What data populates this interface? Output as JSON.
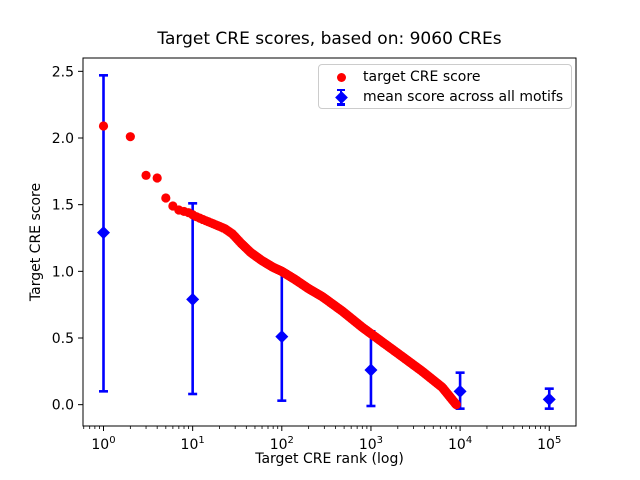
{
  "title": "Target CRE scores, based on: 9060 CREs",
  "legend": {
    "items": [
      {
        "label": "target CRE score",
        "marker": "red-circle"
      },
      {
        "label": "mean score across all motifs",
        "marker": "blue-diamond-with-errorbar"
      }
    ]
  },
  "colors": {
    "target_series": "#ff0000",
    "mean_series": "#0000ff",
    "legend_border": "#cccccc",
    "text": "#000000",
    "background": "#ffffff"
  },
  "chart_data": {
    "type": "scatter",
    "title": "Target CRE scores, based on: 9060 CREs",
    "xlabel": "Target CRE rank (log)",
    "ylabel": "Target CRE score",
    "x_scale": "log10",
    "xlim_log10": [
      -0.23,
      5.3
    ],
    "ylim": [
      -0.16,
      2.6
    ],
    "x_major_tick_exponents": [
      0,
      1,
      2,
      3,
      4,
      5
    ],
    "y_ticks": [
      0.0,
      0.5,
      1.0,
      1.5,
      2.0,
      2.5
    ],
    "y_tick_labels": [
      "0.0",
      "0.5",
      "1.0",
      "1.5",
      "2.0",
      "2.5"
    ],
    "grid": false,
    "legend_position": "upper right",
    "series": [
      {
        "name": "target CRE score",
        "type": "scatter",
        "marker": "circle",
        "color": "#ff0000",
        "n_points": 9060,
        "interpolation": "piecewise-linear in log10(rank)",
        "curve_anchor_points": {
          "rank": [
            1,
            2,
            3,
            4,
            5,
            6,
            7,
            9,
            11,
            14,
            18,
            23,
            28,
            35,
            45,
            60,
            80,
            100,
            140,
            200,
            285,
            480,
            800,
            1340,
            2250,
            3760,
            6300,
            9060
          ],
          "score": [
            2.09,
            2.01,
            1.72,
            1.7,
            1.55,
            1.49,
            1.46,
            1.44,
            1.41,
            1.38,
            1.35,
            1.32,
            1.28,
            1.21,
            1.14,
            1.08,
            1.03,
            1.0,
            0.94,
            0.87,
            0.81,
            0.7,
            0.58,
            0.47,
            0.36,
            0.25,
            0.13,
            0.0
          ]
        }
      },
      {
        "name": "mean score across all motifs",
        "type": "errorbar",
        "marker": "diamond",
        "color": "#0000ff",
        "points": [
          {
            "rank": 1,
            "mean": 1.29,
            "lo": 0.1,
            "hi": 2.47
          },
          {
            "rank": 10,
            "mean": 0.79,
            "lo": 0.08,
            "hi": 1.51
          },
          {
            "rank": 100,
            "mean": 0.51,
            "lo": 0.03,
            "hi": 1.0
          },
          {
            "rank": 1000,
            "mean": 0.26,
            "lo": -0.01,
            "hi": 0.55
          },
          {
            "rank": 10000,
            "mean": 0.1,
            "lo": -0.03,
            "hi": 0.24
          },
          {
            "rank": 100000,
            "mean": 0.04,
            "lo": -0.03,
            "hi": 0.12
          }
        ]
      }
    ]
  }
}
